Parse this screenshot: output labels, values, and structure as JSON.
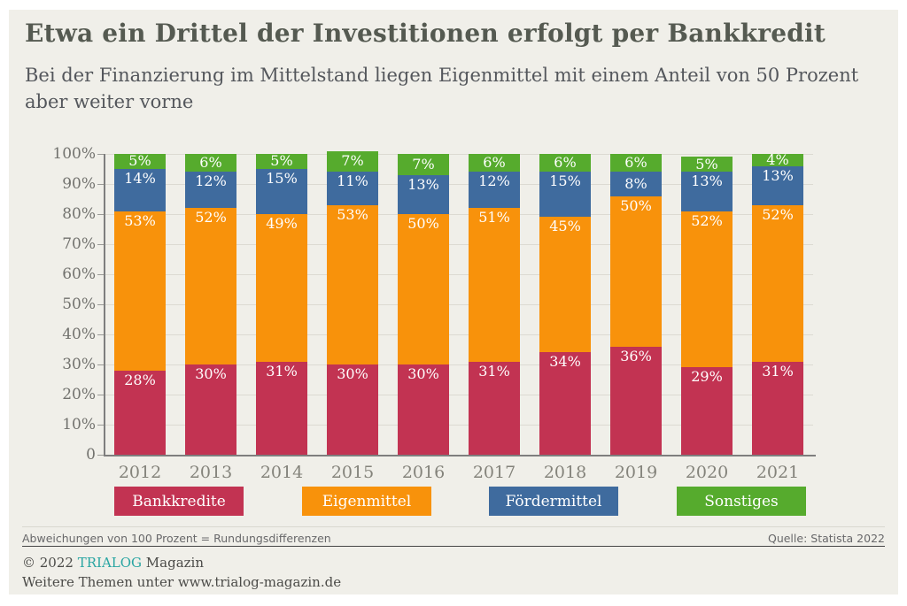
{
  "header": {
    "title": "Etwa ein Drittel der Investitionen erfolgt per Bankkredit",
    "subtitle_line1": "Bei der Finanzierung im Mittelstand liegen Eigenmittel mit einem Anteil von 50 Prozent",
    "subtitle_line2": "aber weiter vorne"
  },
  "chart_data": {
    "type": "bar",
    "stacked": true,
    "categories": [
      "2012",
      "2013",
      "2014",
      "2015",
      "2016",
      "2017",
      "2018",
      "2019",
      "2020",
      "2021"
    ],
    "series": [
      {
        "name": "Bankkredite",
        "color": "#c23352",
        "values": [
          28,
          30,
          31,
          30,
          30,
          31,
          34,
          36,
          29,
          31
        ]
      },
      {
        "name": "Eigenmittel",
        "color": "#f8920b",
        "values": [
          53,
          52,
          49,
          53,
          50,
          51,
          45,
          50,
          52,
          52
        ]
      },
      {
        "name": "Fördermittel",
        "color": "#3f6b9e",
        "values": [
          14,
          12,
          15,
          11,
          13,
          12,
          15,
          8,
          13,
          13
        ]
      },
      {
        "name": "Sonstiges",
        "color": "#56ab2d",
        "values": [
          5,
          6,
          5,
          7,
          7,
          6,
          6,
          6,
          5,
          4
        ]
      }
    ],
    "value_suffix": "%",
    "y_ticks": [
      "100%",
      "90%",
      "80%",
      "70%",
      "60%",
      "50%",
      "40%",
      "30%",
      "20%",
      "10%",
      "0"
    ],
    "ylim": [
      0,
      100
    ],
    "grid": true,
    "legend_position": "bottom"
  },
  "footer": {
    "note": "Abweichungen von 100 Prozent = Rundungsdifferenzen",
    "source": "Quelle: Statista 2022",
    "copyright_prefix": "© 2022 ",
    "brand": "TRIALOG",
    "copyright_suffix": " Magazin",
    "more": "Weitere Themen unter www.trialog-magazin.de"
  },
  "colors": {
    "background": "#f0efe9",
    "brand_teal": "#29a5a2",
    "bankkredite": "#c23352",
    "eigenmittel": "#f8920b",
    "foerdermittel": "#3f6b9e",
    "sonstiges": "#56ab2d"
  }
}
